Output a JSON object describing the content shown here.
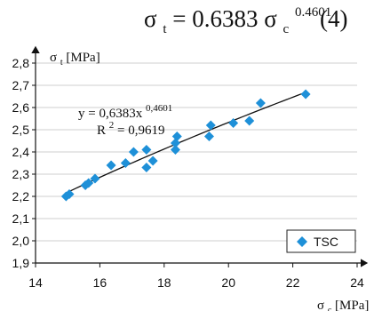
{
  "formula": {
    "sigma": "σ",
    "t": "t",
    "equals": " = 0.6383",
    "c": "c",
    "exponent": "0.4601",
    "number": "(4)"
  },
  "chart_data": {
    "type": "scatter",
    "xlim": [
      14,
      24
    ],
    "ylim": [
      1.9,
      2.8
    ],
    "x_ticks": [
      "14",
      "16",
      "18",
      "20",
      "22",
      "24"
    ],
    "y_ticks": [
      "1,9",
      "2,0",
      "2,1",
      "2,2",
      "2,3",
      "2,4",
      "2,5",
      "2,6",
      "2,7",
      "2,8"
    ],
    "xlabel": {
      "symbol": "σ",
      "subscript": "c",
      "unit": "[MPa]"
    },
    "ylabel": {
      "symbol": "σ",
      "subscript": "t",
      "unit": "[MPa]"
    },
    "series": [
      {
        "name": "TSC",
        "color": "#1E90D8",
        "points": [
          [
            14.95,
            2.2
          ],
          [
            15.05,
            2.21
          ],
          [
            15.55,
            2.25
          ],
          [
            15.65,
            2.26
          ],
          [
            15.85,
            2.28
          ],
          [
            16.35,
            2.34
          ],
          [
            16.8,
            2.35
          ],
          [
            17.05,
            2.4
          ],
          [
            17.45,
            2.41
          ],
          [
            17.45,
            2.33
          ],
          [
            17.65,
            2.36
          ],
          [
            18.35,
            2.41
          ],
          [
            18.35,
            2.44
          ],
          [
            18.4,
            2.47
          ],
          [
            19.4,
            2.47
          ],
          [
            19.45,
            2.52
          ],
          [
            20.15,
            2.53
          ],
          [
            20.65,
            2.54
          ],
          [
            21.0,
            2.62
          ],
          [
            22.4,
            2.66
          ]
        ]
      }
    ],
    "trendline": {
      "coefficient": 0.6383,
      "exponent": 0.4601,
      "x_range": [
        15.0,
        22.4
      ],
      "equation_text": "y = 0,6383x",
      "equation_exponent": "0,4601",
      "r_label": "R",
      "r_power": "2",
      "r_value": " = 0,9619"
    },
    "grid": true,
    "legend": {
      "position": "bottom-right",
      "label": "TSC"
    }
  }
}
